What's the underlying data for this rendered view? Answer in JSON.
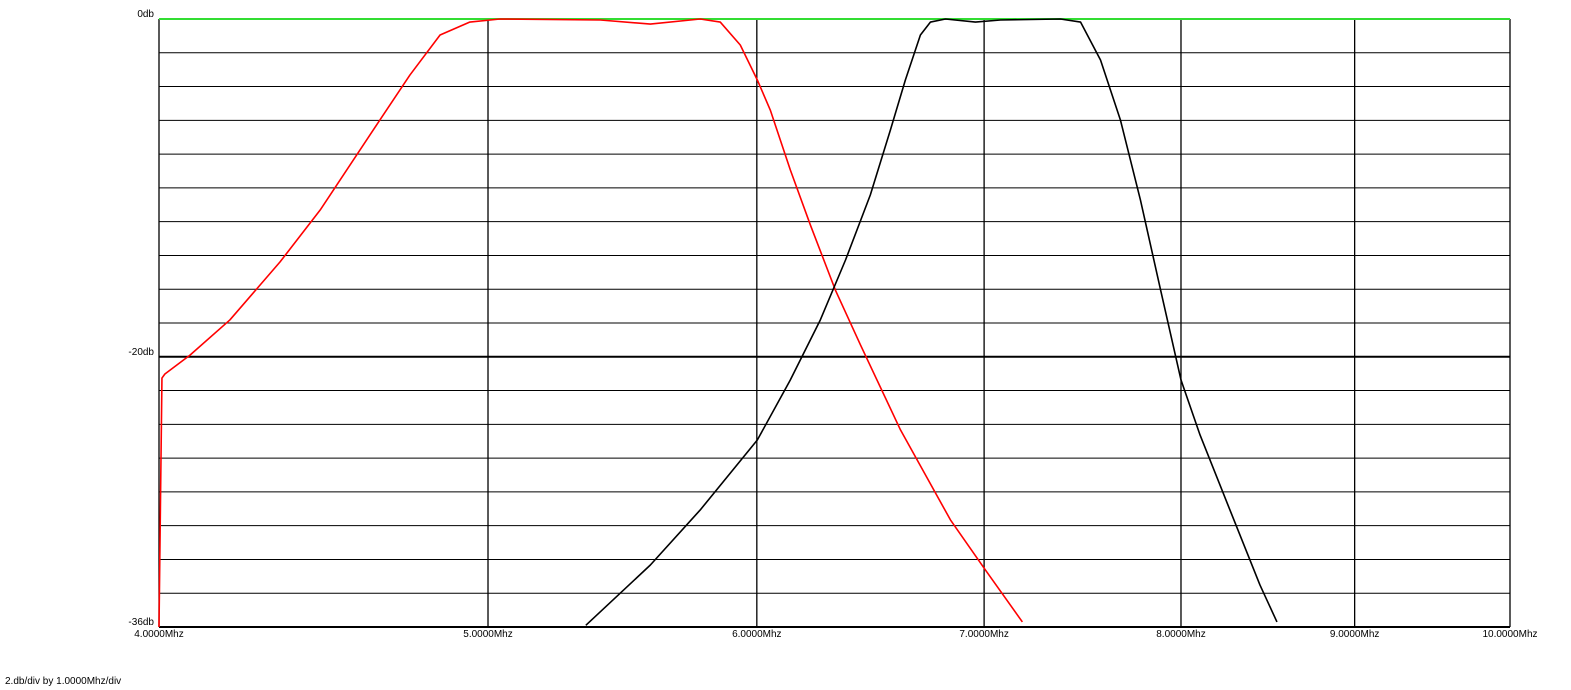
{
  "chart_data": {
    "type": "line",
    "footer": "2.db/div by 1.0000Mhz/div",
    "xscale": "log",
    "xlim": [
      4,
      10
    ],
    "ylim": [
      -36,
      0
    ],
    "xticks": [
      {
        "value": 4,
        "label": "4.0000Mhz"
      },
      {
        "value": 5,
        "label": "5.0000Mhz"
      },
      {
        "value": 6,
        "label": "6.0000Mhz"
      },
      {
        "value": 7,
        "label": "7.0000Mhz"
      },
      {
        "value": 8,
        "label": "8.0000Mhz"
      },
      {
        "value": 9,
        "label": "9.0000Mhz"
      },
      {
        "value": 10,
        "label": "10.0000Mhz"
      }
    ],
    "yticks": [
      {
        "value": 0,
        "label": "0db"
      },
      {
        "value": -20,
        "label": "-20db"
      },
      {
        "value": -36,
        "label": "-36db"
      }
    ],
    "y_minor_ticks": [
      0,
      -2,
      -4,
      -6,
      -8,
      -10,
      -12,
      -14,
      -16,
      -18,
      -20,
      -22,
      -24,
      -26,
      -28,
      -30,
      -32,
      -34,
      -36
    ],
    "grid": true,
    "grid_color": "#000000",
    "zero_line_color": "#33dd33",
    "series": [
      {
        "color": "#ff0000",
        "x": [
          4.0,
          4.008,
          4.016,
          4.085,
          4.197,
          4.342,
          4.462,
          4.615,
          4.742,
          4.84,
          4.939,
          5.041,
          5.396,
          5.582,
          5.774,
          5.853,
          5.933,
          6.002,
          6.055,
          6.138,
          6.222,
          6.328,
          6.437,
          6.614,
          6.842,
          7.006,
          7.184
        ],
        "values": [
          -36.0,
          -21.26,
          -21.02,
          -19.9,
          -17.82,
          -14.39,
          -11.31,
          -6.87,
          -3.32,
          -0.95,
          -0.18,
          0,
          -0.06,
          -0.3,
          0,
          -0.18,
          -1.54,
          -3.61,
          -5.39,
          -8.94,
          -12.2,
          -16.04,
          -19.3,
          -24.33,
          -29.66,
          -32.62,
          -35.7
        ]
      },
      {
        "color": "#000000",
        "x": [
          5.343,
          5.582,
          5.774,
          6.002,
          6.138,
          6.264,
          6.372,
          6.48,
          6.569,
          6.636,
          6.704,
          6.75,
          6.819,
          6.959,
          7.078,
          7.372,
          7.473,
          7.575,
          7.678,
          7.783,
          7.89,
          8.0,
          8.104,
          8.27,
          8.44,
          8.538
        ],
        "values": [
          -35.9,
          -32.33,
          -29.07,
          -24.93,
          -21.37,
          -17.82,
          -14.27,
          -10.42,
          -6.57,
          -3.61,
          -0.95,
          -0.18,
          0,
          -0.18,
          -0.06,
          0,
          -0.18,
          -2.43,
          -5.98,
          -10.72,
          -16.04,
          -21.37,
          -24.63,
          -29.07,
          -33.51,
          -35.7
        ]
      }
    ]
  }
}
